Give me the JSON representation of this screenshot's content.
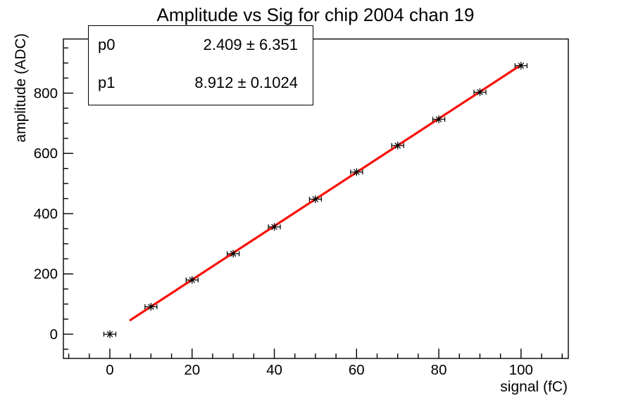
{
  "window": {
    "background": "#ffffff"
  },
  "chart_data": {
    "type": "scatter",
    "title": "Amplitude vs Sig for chip 2004 chan 19",
    "xlabel": "signal (fC)",
    "ylabel": "amplitude (ADC)",
    "xlim": [
      -11.3,
      111.5
    ],
    "ylim": [
      -80.5,
      979.6
    ],
    "x": [
      0,
      10,
      20,
      30,
      40,
      50,
      60,
      70,
      80,
      90,
      100
    ],
    "y": [
      0,
      91,
      180,
      267,
      356,
      448,
      538,
      626,
      713,
      803,
      891
    ],
    "x_major_ticks": [
      0,
      20,
      40,
      60,
      80,
      100
    ],
    "x_minor_step": 5,
    "y_major_ticks": [
      0,
      200,
      400,
      600,
      800
    ],
    "y_minor_step": 50,
    "grid": false,
    "legend": "none",
    "marker": "asterisk-with-x-error-bars",
    "colors": {
      "marker": "#000000",
      "fit_line": "#f8120c",
      "axis": "#000000",
      "text": "#000000"
    },
    "fit": {
      "p0": 2.409,
      "p1": 8.912,
      "p0_err": 6.351,
      "p1_err": 0.1024,
      "x_start": 5,
      "x_end": 100
    }
  },
  "stats_box": {
    "rows": [
      {
        "name": "p0",
        "value": "2.409 ± 6.351"
      },
      {
        "name": "p1",
        "value": "8.912 ± 0.1024"
      }
    ]
  }
}
